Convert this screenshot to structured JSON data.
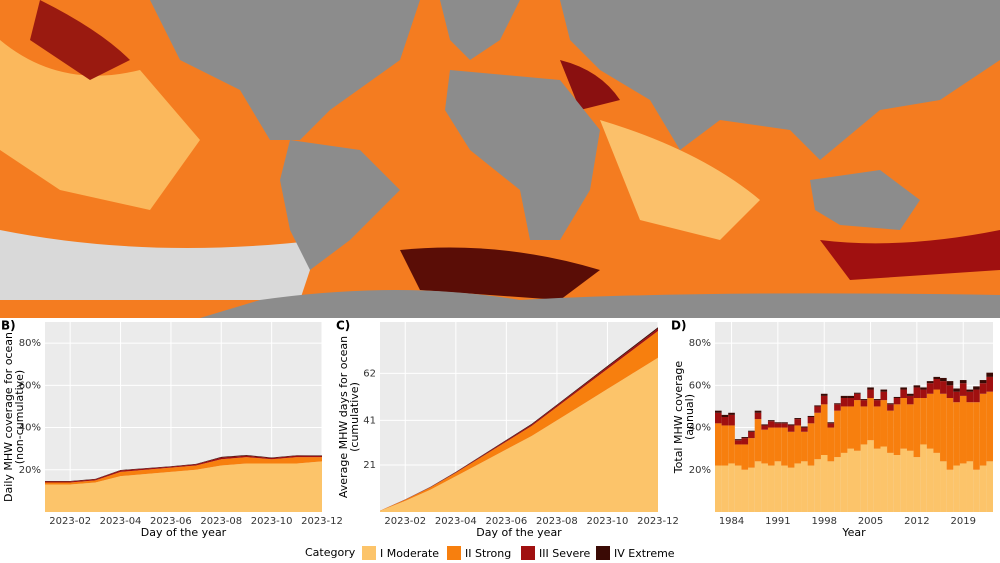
{
  "chart_data": [
    {
      "type": "area",
      "panel": "B)",
      "stacked": true,
      "ylabel": [
        "Daily MHW coverage for ocean",
        "(non-cumulative)"
      ],
      "xlabel": "Day of the year",
      "x": [
        "2023-01",
        "2023-02",
        "2023-03",
        "2023-04",
        "2023-05",
        "2023-06",
        "2023-07",
        "2023-08",
        "2023-09",
        "2023-10",
        "2023-11",
        "2023-12"
      ],
      "xticks": [
        "2023-02",
        "2023-04",
        "2023-06",
        "2023-08",
        "2023-10",
        "2023-12"
      ],
      "ylim": [
        0,
        90
      ],
      "yticks": [
        {
          "value": 20,
          "label": "20%"
        },
        {
          "value": 40,
          "label": "40%"
        },
        {
          "value": 60,
          "label": "60%"
        },
        {
          "value": 80,
          "label": "80%"
        }
      ],
      "grid": true,
      "series": [
        {
          "name": "I Moderate",
          "color": "#fcc46a",
          "values": [
            13,
            13,
            14,
            17,
            18,
            19,
            20,
            22,
            23,
            23,
            23,
            24
          ]
        },
        {
          "name": "II Strong",
          "color": "#f77f0e",
          "values": [
            1,
            1,
            1,
            2,
            2,
            2,
            2,
            3,
            3,
            2,
            3,
            2
          ]
        },
        {
          "name": "III Severe",
          "color": "#a01010",
          "values": [
            0.5,
            0.5,
            0.5,
            0.7,
            0.6,
            0.5,
            0.6,
            0.8,
            0.7,
            0.6,
            0.7,
            0.6
          ]
        },
        {
          "name": "IV Extreme",
          "color": "#3a0a05",
          "values": [
            0.2,
            0.2,
            0.2,
            0.2,
            0.2,
            0.2,
            0.2,
            0.3,
            0.3,
            0.2,
            0.2,
            0.2
          ]
        }
      ]
    },
    {
      "type": "area",
      "panel": "C)",
      "stacked": true,
      "ylabel": [
        "Average MHW days for ocean",
        "(cumulative)"
      ],
      "xlabel": "Day of the year",
      "x": [
        "2023-01",
        "2023-02",
        "2023-03",
        "2023-04",
        "2023-05",
        "2023-06",
        "2023-07",
        "2023-08",
        "2023-09",
        "2023-10",
        "2023-11",
        "2023-12"
      ],
      "xticks": [
        "2023-02",
        "2023-04",
        "2023-06",
        "2023-08",
        "2023-10",
        "2023-12"
      ],
      "ylim": [
        0,
        85
      ],
      "yticks": [
        21,
        41,
        62
      ],
      "grid": true,
      "series": [
        {
          "name": "I Moderate",
          "color": "#fcc46a",
          "values": [
            0.5,
            5,
            10,
            16,
            22,
            28,
            34,
            41,
            48,
            55,
            62,
            69
          ]
        },
        {
          "name": "II Strong",
          "color": "#f77f0e",
          "values": [
            0.1,
            0.5,
            1,
            1.5,
            2.5,
            3.5,
            4.5,
            6,
            7.5,
            9,
            10.5,
            12
          ]
        },
        {
          "name": "III Severe",
          "color": "#a01010",
          "values": [
            0,
            0.1,
            0.2,
            0.3,
            0.4,
            0.5,
            0.6,
            0.7,
            0.8,
            0.9,
            1,
            1.1
          ]
        },
        {
          "name": "IV Extreme",
          "color": "#3a0a05",
          "values": [
            0,
            0.05,
            0.1,
            0.15,
            0.2,
            0.25,
            0.3,
            0.35,
            0.4,
            0.45,
            0.5,
            0.55
          ]
        }
      ]
    },
    {
      "type": "bar",
      "panel": "D)",
      "stacked": true,
      "ylabel": [
        "Total MHW coverage",
        "(annual)"
      ],
      "xlabel": "Year",
      "x": [
        1982,
        1983,
        1984,
        1985,
        1986,
        1987,
        1988,
        1989,
        1990,
        1991,
        1992,
        1993,
        1994,
        1995,
        1996,
        1997,
        1998,
        1999,
        2000,
        2001,
        2002,
        2003,
        2004,
        2005,
        2006,
        2007,
        2008,
        2009,
        2010,
        2011,
        2012,
        2013,
        2014,
        2015,
        2016,
        2017,
        2018,
        2019,
        2020,
        2021,
        2022,
        2023
      ],
      "xlim": [
        1981.5,
        2023.5
      ],
      "xticks": [
        1984,
        1991,
        1998,
        2005,
        2012,
        2019
      ],
      "ylim": [
        0,
        90
      ],
      "yticks": [
        {
          "value": 20,
          "label": "20%"
        },
        {
          "value": 40,
          "label": "40%"
        },
        {
          "value": 60,
          "label": "60%"
        },
        {
          "value": 80,
          "label": "80%"
        }
      ],
      "grid": true,
      "series": [
        {
          "name": "I Moderate",
          "color": "#fcc46a",
          "values": [
            22,
            22,
            23,
            22,
            20,
            21,
            24,
            23,
            22,
            24,
            22,
            21,
            23,
            24,
            22,
            25,
            27,
            24,
            26,
            28,
            30,
            29,
            32,
            34,
            30,
            31,
            28,
            27,
            30,
            29,
            26,
            32,
            30,
            28,
            24,
            20,
            22,
            23,
            24,
            20,
            22,
            24
          ]
        },
        {
          "name": "II Strong",
          "color": "#f77f0e",
          "values": [
            20,
            19,
            18,
            10,
            12,
            14,
            20,
            16,
            18,
            16,
            18,
            17,
            18,
            14,
            20,
            22,
            24,
            16,
            22,
            22,
            20,
            24,
            18,
            20,
            20,
            22,
            20,
            24,
            24,
            22,
            28,
            22,
            26,
            30,
            32,
            34,
            30,
            32,
            28,
            32,
            34,
            33
          ]
        },
        {
          "name": "III Severe",
          "color": "#a01010",
          "values": [
            5,
            4,
            5,
            2,
            3,
            3,
            3,
            2,
            3,
            2,
            2,
            3,
            3,
            2,
            3,
            3,
            4,
            2,
            3,
            4,
            4,
            3,
            3,
            4,
            3,
            4,
            3,
            3,
            4,
            4,
            5,
            4,
            5,
            5,
            6,
            6,
            5,
            6,
            5,
            6,
            5,
            7
          ]
        },
        {
          "name": "IV Extreme",
          "color": "#3a0a05",
          "values": [
            1,
            1,
            1,
            0.5,
            0.5,
            0.5,
            1,
            0.5,
            0.5,
            0.5,
            0.5,
            0.5,
            0.5,
            0.5,
            0.5,
            0.5,
            1,
            0.5,
            0.5,
            1,
            1,
            0.5,
            0.5,
            1,
            0.5,
            1,
            0.5,
            0.5,
            1,
            1,
            1,
            1,
            1,
            1,
            1.5,
            2,
            1.5,
            1.5,
            1,
            1.5,
            1.5,
            2
          ]
        }
      ]
    }
  ],
  "legend_title": "Category"
}
